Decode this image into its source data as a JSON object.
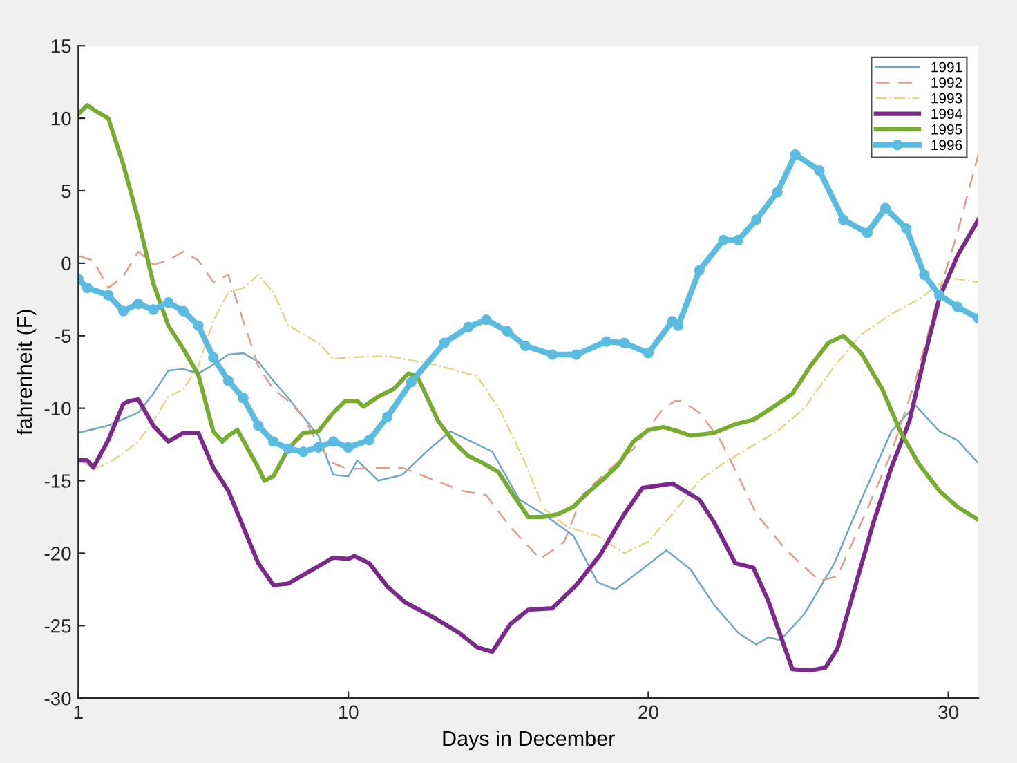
{
  "chart_data": {
    "type": "line",
    "xlabel": "Days in December",
    "ylabel": "fahrenheit (F)",
    "xlim": [
      1,
      31
    ],
    "xticks": [
      1,
      10,
      20,
      30
    ],
    "ylim": [
      -30,
      15
    ],
    "yticks": [
      -30,
      -25,
      -20,
      -15,
      -10,
      -5,
      0,
      5,
      10,
      15
    ],
    "grid": false,
    "legend": "top right",
    "series": [
      {
        "name": "1991",
        "color": "#6fa8c0",
        "line_style": "solid",
        "x": [
          1,
          2,
          3,
          3.5,
          4,
          4.5,
          5,
          5.5,
          6,
          6.5,
          7,
          7.5,
          8,
          8.5,
          9,
          9.5,
          10,
          10.3,
          11,
          11.8,
          12.6,
          13.4,
          14.8,
          15.7,
          16.5,
          17.5,
          18.3,
          18.9,
          19.8,
          20.6,
          21.4,
          22.2,
          23,
          23.6,
          24,
          24.4,
          25.2,
          26.2,
          27.1,
          28.1,
          28.9,
          29.7,
          30.3,
          31
        ],
        "values": [
          -11.7,
          -11.2,
          -10.3,
          -9,
          -7.4,
          -7.3,
          -7.6,
          -7,
          -6.3,
          -6.2,
          -6.8,
          -8.1,
          -9.3,
          -10.6,
          -11.9,
          -14.6,
          -14.7,
          -13.6,
          -15,
          -14.6,
          -13,
          -11.6,
          -13,
          -16.3,
          -17.3,
          -18.8,
          -22,
          -22.5,
          -21.1,
          -19.8,
          -21.1,
          -23.6,
          -25.5,
          -26.3,
          -25.8,
          -26,
          -24.2,
          -20.7,
          -16.3,
          -11.6,
          -9.8,
          -11.6,
          -12.2,
          -13.8
        ]
      },
      {
        "name": "1992",
        "color": "#d9a08c",
        "line_style": "dashed",
        "x": [
          1,
          1.5,
          2,
          2.5,
          3,
          3.5,
          4,
          4.5,
          5,
          5.5,
          6,
          6.5,
          7,
          7.5,
          8,
          8.5,
          9,
          9.5,
          10,
          11,
          11.8,
          12.9,
          13.8,
          14.6,
          15.4,
          16.4,
          17.2,
          17.8,
          18.6,
          19.5,
          20.5,
          20.9,
          21.1,
          21.7,
          22.4,
          23,
          23.6,
          24.6,
          25.7,
          26.3,
          27.1,
          28.1,
          28.9,
          29.7,
          30.3,
          31
        ],
        "values": [
          0.5,
          0.2,
          -1.7,
          -0.9,
          0.8,
          -0.1,
          0.2,
          0.8,
          0.2,
          -1.3,
          -0.8,
          -4,
          -7.1,
          -8.7,
          -9.5,
          -10.6,
          -12.5,
          -13.8,
          -14.2,
          -14.1,
          -14.1,
          -15,
          -15.7,
          -16,
          -18.2,
          -20.4,
          -19.2,
          -16,
          -14.4,
          -12.8,
          -10,
          -9.5,
          -9.5,
          -10.3,
          -12.2,
          -14.7,
          -17.3,
          -19.8,
          -21.9,
          -21.6,
          -17.9,
          -13.1,
          -8.1,
          -2,
          2.1,
          7.5
        ]
      },
      {
        "name": "1993",
        "color": "#e6d48a",
        "line_style": "dashdot",
        "x": [
          1,
          1.5,
          2,
          2.5,
          3,
          3.5,
          4,
          4.5,
          5,
          5.5,
          6,
          6.5,
          7,
          7.5,
          8,
          8.5,
          9,
          9.5,
          10,
          11.3,
          12.9,
          14.3,
          15.1,
          15.9,
          16.5,
          17.3,
          18.3,
          19.2,
          20,
          20.8,
          21.7,
          22.5,
          23.3,
          24.3,
          25.2,
          26.2,
          27.1,
          28.1,
          29,
          30,
          31
        ],
        "values": [
          -13.5,
          -14.2,
          -13.8,
          -13.1,
          -12.3,
          -10.9,
          -9.2,
          -8.7,
          -7.1,
          -4,
          -2,
          -1.7,
          -0.8,
          -2,
          -4.3,
          -4.9,
          -5.5,
          -6.6,
          -6.5,
          -6.4,
          -7,
          -7.8,
          -10.3,
          -13.8,
          -16.9,
          -18.2,
          -18.8,
          -20,
          -19.2,
          -17.3,
          -15,
          -13.8,
          -12.8,
          -11.6,
          -10,
          -7.1,
          -4.9,
          -3.5,
          -2.5,
          -1,
          -1.3
        ]
      },
      {
        "name": "1994",
        "color": "#7b2a8c",
        "line_style": "solid",
        "x": [
          1,
          1.3,
          1.5,
          2,
          2.5,
          2.7,
          3,
          3.5,
          4,
          4.5,
          5,
          5.5,
          6,
          6.5,
          7,
          7.5,
          8,
          8.5,
          9,
          9.5,
          10,
          10.2,
          10.7,
          11.3,
          11.9,
          12.9,
          13.7,
          14.3,
          14.8,
          15.4,
          16,
          16.8,
          17.6,
          18.4,
          19.2,
          19.8,
          20.8,
          21.7,
          22.2,
          22.9,
          23.5,
          24,
          24.8,
          25.4,
          25.9,
          26.3,
          26.8,
          27.5,
          28.1,
          28.7,
          29.2,
          29.7,
          30.3,
          31
        ],
        "values": [
          -13.6,
          -13.6,
          -14.1,
          -12.2,
          -9.7,
          -9.5,
          -9.4,
          -11.2,
          -12.3,
          -11.7,
          -11.7,
          -14.1,
          -15.7,
          -18.2,
          -20.7,
          -22.2,
          -22.1,
          -21.5,
          -20.9,
          -20.3,
          -20.4,
          -20.2,
          -20.7,
          -22.3,
          -23.4,
          -24.5,
          -25.5,
          -26.5,
          -26.8,
          -24.9,
          -23.9,
          -23.8,
          -22.2,
          -20.1,
          -17.3,
          -15.5,
          -15.2,
          -16.3,
          -17.9,
          -20.7,
          -21,
          -23.3,
          -28,
          -28.1,
          -27.9,
          -26.6,
          -23,
          -17.9,
          -14.1,
          -10.9,
          -6.5,
          -2.4,
          0.5,
          3
        ]
      },
      {
        "name": "1995",
        "color": "#77ac30",
        "line_style": "solid",
        "x": [
          1,
          1.3,
          1.5,
          2,
          2.5,
          3,
          3.5,
          4,
          4.5,
          5,
          5.5,
          5.8,
          6,
          6.3,
          7,
          7.2,
          7.5,
          8,
          8.5,
          9,
          9.5,
          9.9,
          10.3,
          10.5,
          11,
          11.5,
          12,
          12.3,
          13,
          13.5,
          14,
          14.5,
          15,
          15.5,
          16,
          16.5,
          17,
          17.5,
          18,
          18.5,
          19,
          19.5,
          20,
          20.5,
          21,
          21.4,
          22.2,
          22.9,
          23.5,
          24.1,
          24.8,
          25.4,
          26,
          26.5,
          27.1,
          27.8,
          28.4,
          29,
          29.7,
          30.3,
          31
        ],
        "values": [
          10.3,
          10.9,
          10.6,
          10,
          6.8,
          3,
          -1.4,
          -4.3,
          -5.9,
          -7.7,
          -11.6,
          -12.3,
          -11.9,
          -11.5,
          -14.1,
          -15,
          -14.7,
          -12.8,
          -11.7,
          -11.6,
          -10.3,
          -9.5,
          -9.5,
          -9.9,
          -9.2,
          -8.7,
          -7.6,
          -7.8,
          -10.9,
          -12.3,
          -13.3,
          -13.8,
          -14.4,
          -16,
          -17.5,
          -17.5,
          -17.3,
          -16.8,
          -15.8,
          -14.9,
          -13.9,
          -12.3,
          -11.5,
          -11.3,
          -11.6,
          -11.9,
          -11.7,
          -11.1,
          -10.8,
          -10,
          -9,
          -7.1,
          -5.5,
          -5,
          -6.2,
          -8.7,
          -11.6,
          -13.8,
          -15.7,
          -16.8,
          -17.7
        ]
      },
      {
        "name": "1996",
        "color": "#5bbbe0",
        "line_style": "solid",
        "marker": "circle",
        "x": [
          1,
          1.3,
          2,
          2.5,
          3,
          3.5,
          4,
          4.5,
          5,
          5.5,
          6,
          6.5,
          7,
          7.5,
          8,
          8.5,
          9,
          9.5,
          10,
          10.7,
          11.3,
          12.1,
          13.2,
          14,
          14.6,
          15.3,
          15.9,
          16.8,
          17.6,
          18.6,
          19.2,
          20,
          20.8,
          21,
          21.7,
          22.5,
          23,
          23.6,
          24.3,
          24.9,
          25.7,
          26.5,
          27.3,
          27.9,
          28.6,
          29.2,
          29.7,
          30.3,
          31
        ],
        "values": [
          -1.1,
          -1.7,
          -2.2,
          -3.3,
          -2.8,
          -3.2,
          -2.7,
          -3.3,
          -4.3,
          -6.5,
          -8.1,
          -9.3,
          -11.2,
          -12.3,
          -12.8,
          -13,
          -12.7,
          -12.3,
          -12.7,
          -12.2,
          -10.6,
          -8.2,
          -5.5,
          -4.4,
          -3.9,
          -4.7,
          -5.7,
          -6.3,
          -6.3,
          -5.4,
          -5.5,
          -6.2,
          -4,
          -4.3,
          -0.5,
          1.6,
          1.6,
          3,
          4.9,
          7.5,
          6.4,
          3,
          2.1,
          3.8,
          2.4,
          -0.8,
          -2.2,
          -3,
          -3.8
        ]
      }
    ]
  }
}
